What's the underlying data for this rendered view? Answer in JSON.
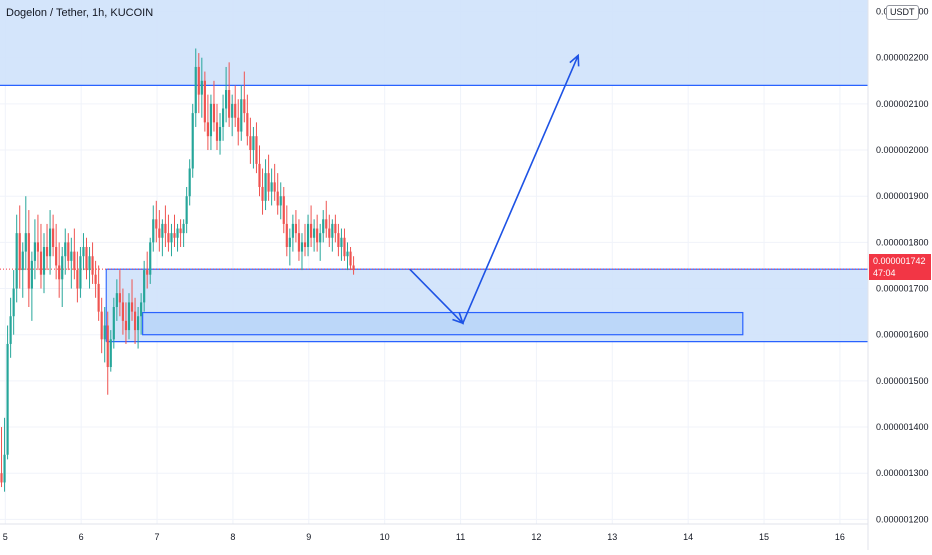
{
  "header": {
    "title": "Dogelon / Tether, 1h, KUCOIN",
    "currency_button": "USDT"
  },
  "last_price": {
    "value": "0.000001742",
    "countdown": "47:04"
  },
  "colors": {
    "up": "#26a69a",
    "down": "#ef5350",
    "zone_fill": "#cfe2fb",
    "zone_line": "#2962ff",
    "arrow": "#1e53e5",
    "last_price": "#f23645",
    "grid": "#f0f3fa"
  },
  "chart_data": {
    "type": "candlestick",
    "title": "Dogelon / Tether, 1h, KUCOIN",
    "symbol": "Dogelon / Tether",
    "interval": "1h",
    "exchange": "KUCOIN",
    "x_ticks": [
      "5",
      "6",
      "7",
      "8",
      "9",
      "10",
      "11",
      "12",
      "13",
      "14",
      "15",
      "16"
    ],
    "x_tick_values": [
      5,
      6,
      7,
      8,
      9,
      10,
      11,
      12,
      13,
      14,
      15,
      16
    ],
    "y_ticks": [
      "0.000001200",
      "0.000001300",
      "0.000001400",
      "0.000001500",
      "0.000001600",
      "0.000001700",
      "0.000001800",
      "0.000001900",
      "0.000002000",
      "0.000002100",
      "0.000002200",
      "0.000002300"
    ],
    "y_tick_values": [
      1.2,
      1.3,
      1.4,
      1.5,
      1.6,
      1.7,
      1.8,
      1.9,
      2.0,
      2.1,
      2.2,
      2.3
    ],
    "y_unit_scale": 1e-06,
    "xlim": [
      4.93,
      16.37
    ],
    "ylim": [
      1.19,
      2.325
    ],
    "grid": true,
    "last_price": 1.742,
    "candles": [
      [
        4.95,
        1.3,
        1.4,
        1.27,
        1.28
      ],
      [
        4.99,
        1.28,
        1.42,
        1.26,
        1.34
      ],
      [
        5.03,
        1.34,
        1.62,
        1.33,
        1.58
      ],
      [
        5.07,
        1.58,
        1.68,
        1.55,
        1.64
      ],
      [
        5.11,
        1.64,
        1.74,
        1.6,
        1.7
      ],
      [
        5.15,
        1.7,
        1.86,
        1.67,
        1.82
      ],
      [
        5.19,
        1.82,
        1.88,
        1.7,
        1.74
      ],
      [
        5.23,
        1.74,
        1.8,
        1.68,
        1.78
      ],
      [
        5.27,
        1.78,
        1.9,
        1.74,
        1.82
      ],
      [
        5.31,
        1.82,
        1.87,
        1.66,
        1.7
      ],
      [
        5.35,
        1.7,
        1.78,
        1.63,
        1.76
      ],
      [
        5.39,
        1.76,
        1.85,
        1.72,
        1.8
      ],
      [
        5.43,
        1.8,
        1.86,
        1.74,
        1.78
      ],
      [
        5.47,
        1.78,
        1.84,
        1.7,
        1.73
      ],
      [
        5.51,
        1.73,
        1.82,
        1.69,
        1.79
      ],
      [
        5.55,
        1.79,
        1.84,
        1.74,
        1.77
      ],
      [
        5.59,
        1.77,
        1.87,
        1.73,
        1.83
      ],
      [
        5.63,
        1.83,
        1.86,
        1.77,
        1.79
      ],
      [
        5.67,
        1.79,
        1.84,
        1.72,
        1.75
      ],
      [
        5.71,
        1.75,
        1.8,
        1.68,
        1.72
      ],
      [
        5.75,
        1.72,
        1.79,
        1.66,
        1.77
      ],
      [
        5.79,
        1.77,
        1.83,
        1.73,
        1.8
      ],
      [
        5.83,
        1.8,
        1.82,
        1.74,
        1.76
      ],
      [
        5.87,
        1.76,
        1.81,
        1.7,
        1.78
      ],
      [
        5.91,
        1.78,
        1.83,
        1.72,
        1.74
      ],
      [
        5.95,
        1.74,
        1.78,
        1.67,
        1.7
      ],
      [
        5.99,
        1.7,
        1.79,
        1.68,
        1.77
      ],
      [
        6.03,
        1.77,
        1.82,
        1.74,
        1.79
      ],
      [
        6.07,
        1.79,
        1.81,
        1.72,
        1.74
      ],
      [
        6.11,
        1.74,
        1.79,
        1.7,
        1.77
      ],
      [
        6.15,
        1.77,
        1.8,
        1.71,
        1.73
      ],
      [
        6.19,
        1.73,
        1.76,
        1.68,
        1.71
      ],
      [
        6.23,
        1.71,
        1.75,
        1.63,
        1.65
      ],
      [
        6.27,
        1.65,
        1.68,
        1.56,
        1.59
      ],
      [
        6.31,
        1.59,
        1.66,
        1.54,
        1.62
      ],
      [
        6.35,
        1.62,
        1.65,
        1.47,
        1.53
      ],
      [
        6.39,
        1.53,
        1.61,
        1.52,
        1.59
      ],
      [
        6.43,
        1.59,
        1.68,
        1.57,
        1.66
      ],
      [
        6.47,
        1.66,
        1.72,
        1.63,
        1.69
      ],
      [
        6.51,
        1.69,
        1.74,
        1.64,
        1.67
      ],
      [
        6.55,
        1.67,
        1.7,
        1.6,
        1.63
      ],
      [
        6.59,
        1.63,
        1.67,
        1.58,
        1.61
      ],
      [
        6.63,
        1.61,
        1.69,
        1.59,
        1.67
      ],
      [
        6.67,
        1.67,
        1.72,
        1.63,
        1.65
      ],
      [
        6.71,
        1.65,
        1.68,
        1.58,
        1.61
      ],
      [
        6.75,
        1.61,
        1.66,
        1.57,
        1.64
      ],
      [
        6.79,
        1.64,
        1.69,
        1.6,
        1.67
      ],
      [
        6.83,
        1.67,
        1.76,
        1.65,
        1.74
      ],
      [
        6.87,
        1.74,
        1.78,
        1.7,
        1.73
      ],
      [
        6.91,
        1.73,
        1.81,
        1.71,
        1.8
      ],
      [
        6.95,
        1.8,
        1.88,
        1.78,
        1.85
      ],
      [
        6.99,
        1.85,
        1.89,
        1.8,
        1.83
      ],
      [
        7.03,
        1.83,
        1.87,
        1.78,
        1.81
      ],
      [
        7.07,
        1.81,
        1.85,
        1.77,
        1.84
      ],
      [
        7.11,
        1.84,
        1.88,
        1.79,
        1.82
      ],
      [
        7.15,
        1.82,
        1.86,
        1.78,
        1.8
      ],
      [
        7.19,
        1.8,
        1.84,
        1.77,
        1.82
      ],
      [
        7.23,
        1.82,
        1.86,
        1.79,
        1.81
      ],
      [
        7.27,
        1.81,
        1.84,
        1.78,
        1.83
      ],
      [
        7.31,
        1.83,
        1.85,
        1.79,
        1.82
      ],
      [
        7.35,
        1.82,
        1.85,
        1.79,
        1.84
      ],
      [
        7.39,
        1.84,
        1.92,
        1.82,
        1.9
      ],
      [
        7.43,
        1.9,
        1.98,
        1.88,
        1.96
      ],
      [
        7.47,
        1.96,
        2.1,
        1.94,
        2.08
      ],
      [
        7.51,
        2.08,
        2.22,
        2.05,
        2.18
      ],
      [
        7.55,
        2.18,
        2.21,
        2.08,
        2.12
      ],
      [
        7.59,
        2.12,
        2.2,
        2.07,
        2.15
      ],
      [
        7.63,
        2.15,
        2.17,
        2.04,
        2.06
      ],
      [
        7.67,
        2.06,
        2.12,
        2.0,
        2.03
      ],
      [
        7.71,
        2.03,
        2.12,
        2.0,
        2.1
      ],
      [
        7.75,
        2.1,
        2.15,
        2.04,
        2.06
      ],
      [
        7.79,
        2.06,
        2.1,
        2.0,
        2.02
      ],
      [
        7.83,
        2.02,
        2.08,
        1.99,
        2.05
      ],
      [
        7.87,
        2.05,
        2.12,
        2.02,
        2.09
      ],
      [
        7.91,
        2.09,
        2.18,
        2.06,
        2.13
      ],
      [
        7.95,
        2.13,
        2.19,
        2.05,
        2.07
      ],
      [
        7.99,
        2.07,
        2.12,
        2.03,
        2.1
      ],
      [
        8.03,
        2.1,
        2.14,
        2.05,
        2.07
      ],
      [
        8.07,
        2.07,
        2.11,
        2.01,
        2.04
      ],
      [
        8.11,
        2.04,
        2.14,
        2.02,
        2.11
      ],
      [
        8.15,
        2.11,
        2.17,
        2.06,
        2.08
      ],
      [
        8.19,
        2.08,
        2.12,
        2.01,
        2.03
      ],
      [
        8.23,
        2.03,
        2.07,
        1.97,
        2.0
      ],
      [
        8.27,
        2.0,
        2.05,
        1.96,
        2.03
      ],
      [
        8.31,
        2.03,
        2.06,
        1.95,
        1.97
      ],
      [
        8.35,
        1.97,
        2.01,
        1.9,
        1.92
      ],
      [
        8.39,
        1.92,
        1.96,
        1.86,
        1.89
      ],
      [
        8.43,
        1.89,
        1.98,
        1.87,
        1.95
      ],
      [
        8.47,
        1.95,
        1.99,
        1.89,
        1.91
      ],
      [
        8.51,
        1.91,
        1.96,
        1.88,
        1.93
      ],
      [
        8.55,
        1.93,
        1.97,
        1.89,
        1.91
      ],
      [
        8.59,
        1.91,
        1.95,
        1.86,
        1.88
      ],
      [
        8.63,
        1.88,
        1.93,
        1.85,
        1.9
      ],
      [
        8.67,
        1.9,
        1.92,
        1.82,
        1.84
      ],
      [
        8.71,
        1.84,
        1.88,
        1.77,
        1.79
      ],
      [
        8.75,
        1.79,
        1.83,
        1.75,
        1.81
      ],
      [
        8.79,
        1.81,
        1.86,
        1.78,
        1.84
      ],
      [
        8.83,
        1.84,
        1.87,
        1.8,
        1.82
      ],
      [
        8.87,
        1.82,
        1.85,
        1.76,
        1.78
      ],
      [
        8.91,
        1.78,
        1.82,
        1.74,
        1.8
      ],
      [
        8.95,
        1.8,
        1.84,
        1.77,
        1.79
      ],
      [
        8.99,
        1.79,
        1.86,
        1.77,
        1.84
      ],
      [
        9.03,
        1.84,
        1.88,
        1.79,
        1.81
      ],
      [
        9.07,
        1.81,
        1.85,
        1.78,
        1.83
      ],
      [
        9.11,
        1.83,
        1.86,
        1.78,
        1.8
      ],
      [
        9.15,
        1.8,
        1.84,
        1.76,
        1.82
      ],
      [
        9.19,
        1.82,
        1.87,
        1.8,
        1.85
      ],
      [
        9.23,
        1.85,
        1.89,
        1.81,
        1.83
      ],
      [
        9.27,
        1.83,
        1.86,
        1.79,
        1.81
      ],
      [
        9.31,
        1.81,
        1.85,
        1.78,
        1.84
      ],
      [
        9.35,
        1.84,
        1.86,
        1.8,
        1.82
      ],
      [
        9.39,
        1.82,
        1.84,
        1.77,
        1.79
      ],
      [
        9.43,
        1.79,
        1.83,
        1.76,
        1.81
      ],
      [
        9.47,
        1.81,
        1.83,
        1.76,
        1.77
      ],
      [
        9.51,
        1.77,
        1.8,
        1.74,
        1.78
      ],
      [
        9.55,
        1.78,
        1.79,
        1.74,
        1.75
      ],
      [
        9.59,
        1.75,
        1.77,
        1.73,
        1.74
      ]
    ],
    "zones": [
      {
        "from": 2.14,
        "to": 2.325,
        "x_from": 4.93,
        "x_to": 16.37,
        "type": "resistance"
      },
      {
        "from": 1.585,
        "to": 1.742,
        "x_from": 6.33,
        "x_to": 16.37,
        "type": "support"
      },
      {
        "from": 1.6,
        "to": 1.648,
        "x_from": 6.81,
        "x_to": 14.72,
        "type": "target-box"
      }
    ],
    "projection": [
      [
        10.33,
        1.742
      ],
      [
        11.03,
        1.625
      ],
      [
        12.55,
        2.205
      ]
    ]
  }
}
